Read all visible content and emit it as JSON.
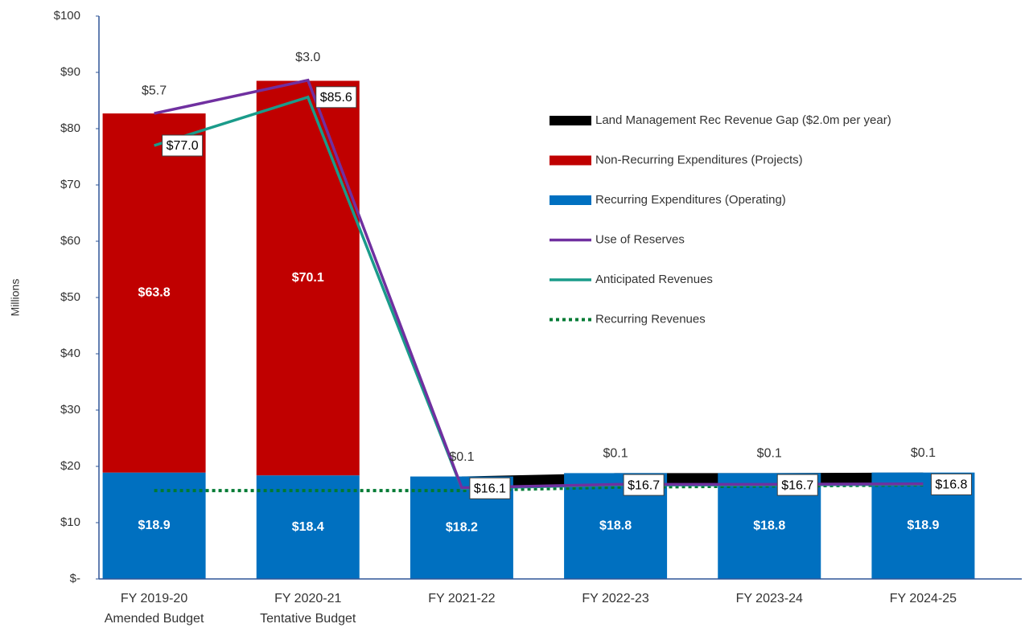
{
  "chart_data": {
    "type": "bar",
    "y_axis_label": "Millions",
    "categories": [
      [
        "FY 2019-20",
        "Amended Budget"
      ],
      [
        "FY 2020-21",
        "Tentative Budget"
      ],
      [
        "FY 2021-22"
      ],
      [
        "FY 2022-23"
      ],
      [
        "FY 2023-24"
      ],
      [
        "FY 2024-25"
      ]
    ],
    "ylim": [
      0,
      100
    ],
    "yticks": [
      {
        "value": 0,
        "label": "$-"
      },
      {
        "value": 10,
        "label": "$10"
      },
      {
        "value": 20,
        "label": "$20"
      },
      {
        "value": 30,
        "label": "$30"
      },
      {
        "value": 40,
        "label": "$40"
      },
      {
        "value": 50,
        "label": "$50"
      },
      {
        "value": 60,
        "label": "$60"
      },
      {
        "value": 70,
        "label": "$70"
      },
      {
        "value": 80,
        "label": "$80"
      },
      {
        "value": 90,
        "label": "$90"
      },
      {
        "value": 100,
        "label": "$100"
      }
    ],
    "legend": "right",
    "series": [
      {
        "name": "Land Management Rec Revenue Gap ($2.0m per year)",
        "type": "area",
        "color": "#000000",
        "values": [
          null,
          null,
          2.0,
          2.0,
          2.0,
          2.0
        ]
      },
      {
        "name": "Non-Recurring Expenditures (Projects)",
        "type": "bar",
        "color": "#c00000",
        "values": [
          63.8,
          70.1,
          null,
          null,
          null,
          null
        ],
        "value_labels": [
          "$63.8",
          "$70.1",
          null,
          null,
          null,
          null
        ]
      },
      {
        "name": "Recurring Expenditures (Operating)",
        "type": "bar",
        "color": "#0070c0",
        "values": [
          18.9,
          18.4,
          18.2,
          18.8,
          18.8,
          18.9
        ],
        "value_labels": [
          "$18.9",
          "$18.4",
          "$18.2",
          "$18.8",
          "$18.8",
          "$18.9"
        ]
      },
      {
        "name": "Use of Reserves",
        "type": "line",
        "color": "#7030a0",
        "values": [
          5.7,
          3.0,
          0.1,
          0.1,
          0.1,
          0.1
        ],
        "value_labels": [
          "$5.7",
          "$3.0",
          "$0.1",
          "$0.1",
          "$0.1",
          "$0.1"
        ]
      },
      {
        "name": "Anticipated Revenues",
        "type": "line",
        "color": "#1a9b8a",
        "values": [
          77.0,
          85.6,
          16.1,
          16.7,
          16.7,
          16.8
        ],
        "value_labels": [
          "$77.0",
          "$85.6",
          "$16.1",
          "$16.7",
          "$16.7",
          "$16.8"
        ]
      },
      {
        "name": "Recurring Revenues",
        "type": "line",
        "dash": true,
        "color": "#007a33",
        "values": [
          15.7,
          15.7,
          15.7,
          16.3,
          16.5,
          16.7
        ]
      }
    ]
  }
}
